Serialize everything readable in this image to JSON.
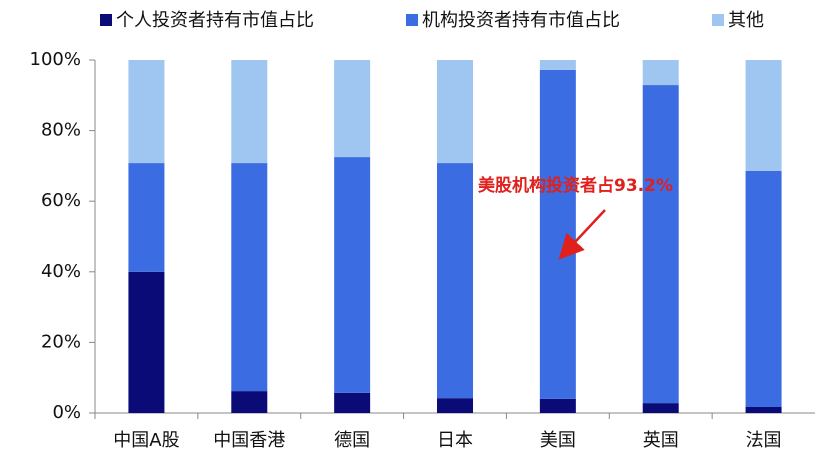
{
  "chart_data": {
    "type": "stacked_bar",
    "categories": [
      "中国A股",
      "中国香港",
      "德国",
      "日本",
      "美国",
      "英国",
      "法国"
    ],
    "series": [
      {
        "name": "个人投资者持有市值占比",
        "color": "#0b0b78",
        "values": [
          40.0,
          6.2,
          5.7,
          4.2,
          4.0,
          2.8,
          1.7
        ]
      },
      {
        "name": "机构投资者持有市值占比",
        "color": "#3c6ce2",
        "values": [
          30.8,
          64.6,
          66.8,
          66.6,
          93.2,
          90.1,
          66.9
        ]
      },
      {
        "name": "其他",
        "color": "#9fc5f1",
        "values": [
          29.2,
          29.2,
          27.5,
          29.2,
          2.8,
          7.1,
          31.4
        ]
      }
    ],
    "ylim": [
      0,
      100
    ],
    "yticks": [
      {
        "value": 0,
        "label": "0%"
      },
      {
        "value": 20,
        "label": "20%"
      },
      {
        "value": 40,
        "label": "40%"
      },
      {
        "value": 60,
        "label": "60%"
      },
      {
        "value": 80,
        "label": "80%"
      },
      {
        "value": 100,
        "label": "100%"
      }
    ],
    "annotation": "美股机构投资者占93.2%"
  }
}
